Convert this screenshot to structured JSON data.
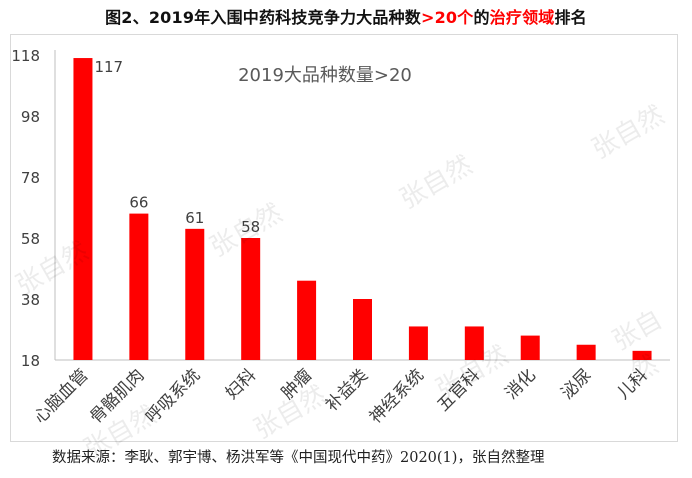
{
  "title": {
    "part1": "图2、2019年入围中药科技竞争力大品种数",
    "part2": ">20个",
    "part3": "的",
    "part4": "治疗领域",
    "part5": "排名"
  },
  "colors": {
    "bar": "#ff0000",
    "title_accent": "#ff0000",
    "axis": "#bfbfbf"
  },
  "chart_data": {
    "type": "bar",
    "title": "2019大品种数量>20",
    "xlabel": "",
    "ylabel": "",
    "categories": [
      "心脑血管",
      "骨骼肌肉",
      "呼吸系统",
      "妇科",
      "肿瘤",
      "补益类",
      "神经系统",
      "五官科",
      "消化",
      "泌尿",
      "儿科"
    ],
    "values": [
      117,
      66,
      61,
      58,
      44,
      38,
      29,
      29,
      26,
      23,
      21
    ],
    "data_labels": [
      "117",
      "66",
      "61",
      "58",
      "",
      "",
      "",
      "",
      "",
      "",
      ""
    ],
    "yticks": [
      "118",
      "98",
      "78",
      "58",
      "38",
      "18"
    ],
    "ylim": [
      18,
      118
    ],
    "grid": false
  },
  "watermark": "张自然",
  "footer": "数据来源：李耿、郭宇博、杨洪军等《中国现代中药》2020(1)，张自然整理"
}
